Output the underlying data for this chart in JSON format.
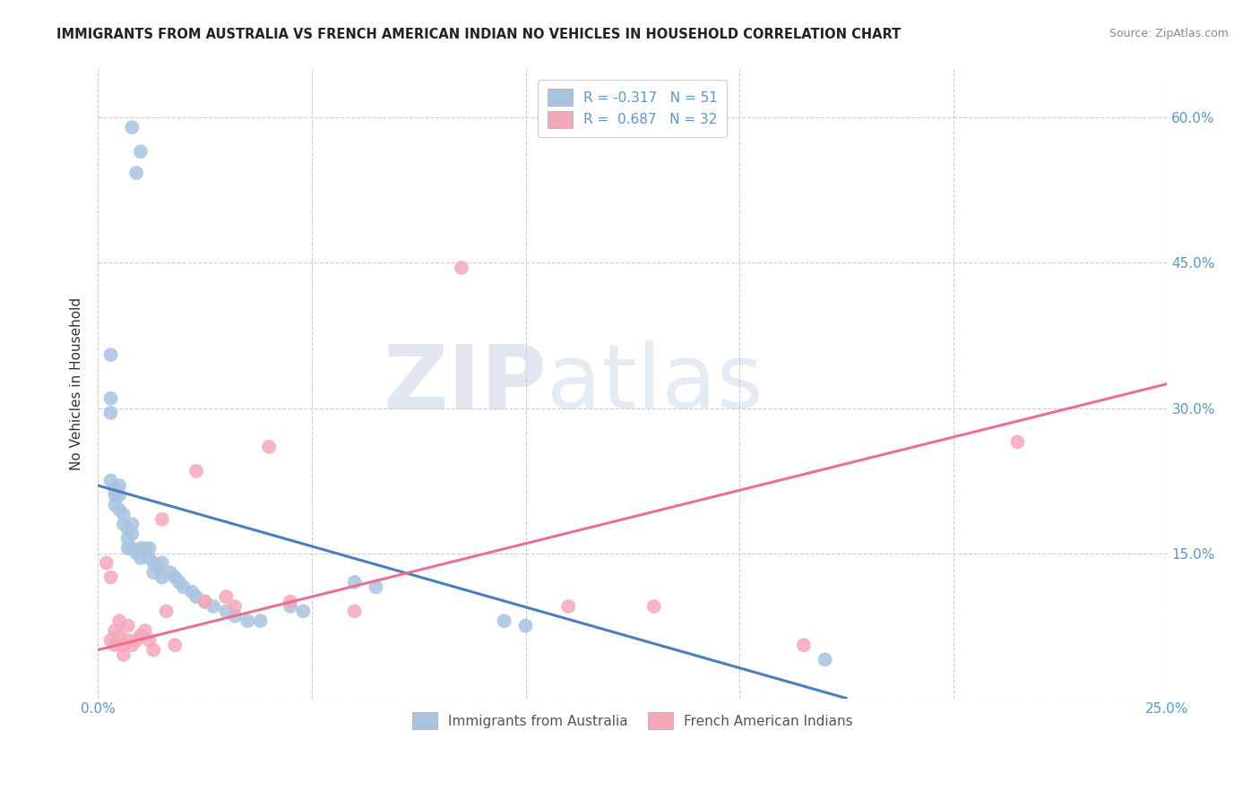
{
  "title": "IMMIGRANTS FROM AUSTRALIA VS FRENCH AMERICAN INDIAN NO VEHICLES IN HOUSEHOLD CORRELATION CHART",
  "source": "Source: ZipAtlas.com",
  "ylabel": "No Vehicles in Household",
  "xlim": [
    0.0,
    0.25
  ],
  "ylim": [
    0.0,
    0.65
  ],
  "xticks": [
    0.0,
    0.05,
    0.1,
    0.15,
    0.2,
    0.25
  ],
  "yticks": [
    0.0,
    0.15,
    0.3,
    0.45,
    0.6
  ],
  "yticklabels_right": [
    "",
    "15.0%",
    "30.0%",
    "45.0%",
    "60.0%"
  ],
  "xticklabels_bottom": [
    "0.0%",
    "",
    "",
    "",
    "",
    "25.0%"
  ],
  "legend1_label": "R = -0.317   N = 51",
  "legend2_label": "R =  0.687   N = 32",
  "legend_bottom": [
    "Immigrants from Australia",
    "French American Indians"
  ],
  "blue_color": "#a8c4e0",
  "pink_color": "#f4a8b8",
  "blue_line_color": "#4a7ec0",
  "pink_line_color": "#e87090",
  "watermark_zip": "ZIP",
  "watermark_atlas": "atlas",
  "blue_scatter_x": [
    0.008,
    0.01,
    0.009,
    0.003,
    0.003,
    0.003,
    0.003,
    0.004,
    0.004,
    0.004,
    0.005,
    0.005,
    0.005,
    0.006,
    0.006,
    0.007,
    0.007,
    0.007,
    0.008,
    0.008,
    0.008,
    0.009,
    0.01,
    0.01,
    0.011,
    0.012,
    0.012,
    0.013,
    0.013,
    0.014,
    0.015,
    0.015,
    0.017,
    0.018,
    0.019,
    0.02,
    0.022,
    0.023,
    0.025,
    0.027,
    0.03,
    0.032,
    0.035,
    0.038,
    0.045,
    0.048,
    0.06,
    0.065,
    0.095,
    0.1,
    0.17
  ],
  "blue_scatter_y": [
    0.59,
    0.565,
    0.543,
    0.355,
    0.31,
    0.295,
    0.225,
    0.215,
    0.21,
    0.2,
    0.22,
    0.21,
    0.195,
    0.19,
    0.18,
    0.175,
    0.165,
    0.155,
    0.18,
    0.17,
    0.155,
    0.15,
    0.155,
    0.145,
    0.155,
    0.155,
    0.145,
    0.14,
    0.13,
    0.135,
    0.14,
    0.125,
    0.13,
    0.125,
    0.12,
    0.115,
    0.11,
    0.105,
    0.1,
    0.095,
    0.09,
    0.085,
    0.08,
    0.08,
    0.095,
    0.09,
    0.12,
    0.115,
    0.08,
    0.075,
    0.04
  ],
  "pink_scatter_x": [
    0.002,
    0.003,
    0.003,
    0.004,
    0.004,
    0.005,
    0.005,
    0.006,
    0.006,
    0.007,
    0.007,
    0.008,
    0.009,
    0.01,
    0.011,
    0.012,
    0.013,
    0.015,
    0.016,
    0.018,
    0.023,
    0.025,
    0.03,
    0.032,
    0.04,
    0.045,
    0.06,
    0.085,
    0.11,
    0.13,
    0.165,
    0.215
  ],
  "pink_scatter_y": [
    0.14,
    0.125,
    0.06,
    0.07,
    0.055,
    0.08,
    0.065,
    0.055,
    0.045,
    0.075,
    0.06,
    0.055,
    0.06,
    0.065,
    0.07,
    0.06,
    0.05,
    0.185,
    0.09,
    0.055,
    0.235,
    0.1,
    0.105,
    0.095,
    0.26,
    0.1,
    0.09,
    0.445,
    0.095,
    0.095,
    0.055,
    0.265
  ],
  "blue_line_x": [
    0.0,
    0.175
  ],
  "blue_line_y": [
    0.22,
    0.0
  ],
  "pink_line_x": [
    0.0,
    0.25
  ],
  "pink_line_y": [
    0.05,
    0.325
  ]
}
